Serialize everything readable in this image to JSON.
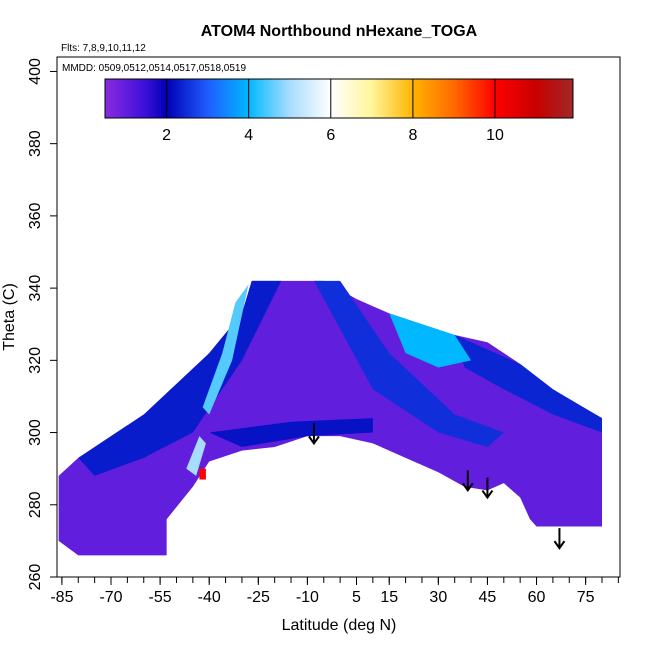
{
  "chart_data": {
    "type": "curtain",
    "title": "ATOM4 Northbound nHexane_TOGA",
    "subtitle": "Flts: 7,8,9,10,11,12",
    "annotation": "MMDD: 0509,0512,0514,0517,0518,0519",
    "xlabel": "Latitude (deg N)",
    "ylabel": "Theta (C)",
    "xlim": [
      -86.5,
      85.5
    ],
    "ylim": [
      260,
      404
    ],
    "xticks": [
      -85,
      -70,
      -55,
      -40,
      -25,
      -10,
      5,
      15,
      30,
      45,
      60,
      75
    ],
    "xminor": [
      -85,
      -80,
      -75,
      -70,
      -65,
      -60,
      -55,
      -50,
      -45,
      -40,
      -35,
      -30,
      -25,
      -20,
      -15,
      -10,
      -5,
      0,
      5,
      10,
      15,
      20,
      25,
      30,
      35,
      40,
      45,
      50,
      55,
      60,
      65,
      70,
      75,
      80,
      85
    ],
    "yticks": [
      260,
      280,
      300,
      320,
      340,
      360,
      380,
      400
    ],
    "clim": [
      0.5,
      11.9
    ],
    "cticks": [
      2,
      4,
      6,
      8,
      10
    ],
    "colorscale": [
      {
        "value": 0.5,
        "color": "#8a2be2"
      },
      {
        "value": 1.5,
        "color": "#3a10d8"
      },
      {
        "value": 2,
        "color": "#0000b4"
      },
      {
        "value": 3,
        "color": "#1f5cff"
      },
      {
        "value": 4,
        "color": "#00b8ff"
      },
      {
        "value": 5,
        "color": "#a8dcff"
      },
      {
        "value": 6,
        "color": "#ffffff"
      },
      {
        "value": 7,
        "color": "#fff59a"
      },
      {
        "value": 8,
        "color": "#ffb400"
      },
      {
        "value": 9,
        "color": "#ff6a00"
      },
      {
        "value": 10,
        "color": "#ff0000"
      },
      {
        "value": 11,
        "color": "#c80000"
      },
      {
        "value": 11.9,
        "color": "#a02828"
      }
    ],
    "regions": [
      {
        "value": 1,
        "lat": [
          -86,
          -80,
          -70,
          -60,
          -50,
          -40,
          -30,
          -27,
          -5,
          5,
          15,
          25,
          35,
          45,
          55,
          65,
          72,
          80,
          80,
          60,
          58,
          55,
          50,
          45,
          38,
          30,
          20,
          10,
          0,
          -10,
          -20,
          -30,
          -40,
          -45,
          -53,
          -53,
          -75,
          -80,
          -86
        ],
        "theta": [
          288,
          293,
          299,
          305,
          312,
          322,
          333,
          342,
          342,
          337,
          333,
          330,
          327,
          325,
          319,
          312,
          308,
          304,
          274,
          274,
          276,
          282,
          286,
          284,
          285,
          289,
          293,
          297,
          299,
          299,
          296,
          295,
          292,
          285,
          276,
          266,
          266,
          266,
          270
        ]
      },
      {
        "value": 2.3,
        "lat": [
          -80,
          -60,
          -40,
          -30,
          -27,
          -18,
          -30,
          -45,
          -60,
          -75
        ],
        "theta": [
          293,
          305,
          322,
          333,
          342,
          342,
          320,
          300,
          293,
          288
        ]
      },
      {
        "value": 2.2,
        "lat": [
          -40,
          -15,
          10,
          10,
          -10,
          -30
        ],
        "theta": [
          300,
          303,
          304,
          300,
          299,
          296
        ]
      },
      {
        "value": 4.5,
        "lat": [
          -32,
          -28,
          -33,
          -40,
          -42,
          -36
        ],
        "theta": [
          336,
          341,
          320,
          305,
          307,
          322
        ]
      },
      {
        "value": 2.5,
        "lat": [
          -8,
          0,
          15,
          35,
          50,
          45,
          30,
          10
        ],
        "theta": [
          342,
          342,
          322,
          305,
          300,
          296,
          300,
          312
        ]
      },
      {
        "value": 2.4,
        "lat": [
          35,
          55,
          65,
          80,
          80,
          65,
          50,
          38
        ],
        "theta": [
          327,
          319,
          312,
          304,
          300,
          305,
          312,
          318
        ]
      },
      {
        "value": 4,
        "lat": [
          15,
          35,
          40,
          30,
          20
        ],
        "theta": [
          333,
          327,
          320,
          318,
          322
        ]
      },
      {
        "value": 5,
        "lat": [
          -47,
          -43,
          -41,
          -44
        ],
        "theta": [
          290,
          299,
          297,
          288
        ]
      },
      {
        "value": 10,
        "lat": [
          -43,
          -41,
          -41,
          -43
        ],
        "theta": [
          287,
          287,
          290,
          290
        ]
      }
    ],
    "arrows": [
      {
        "lat": -8,
        "theta": 297
      },
      {
        "lat": 39,
        "theta": 284
      },
      {
        "lat": 45,
        "theta": 282
      },
      {
        "lat": 67,
        "theta": 268
      }
    ]
  }
}
